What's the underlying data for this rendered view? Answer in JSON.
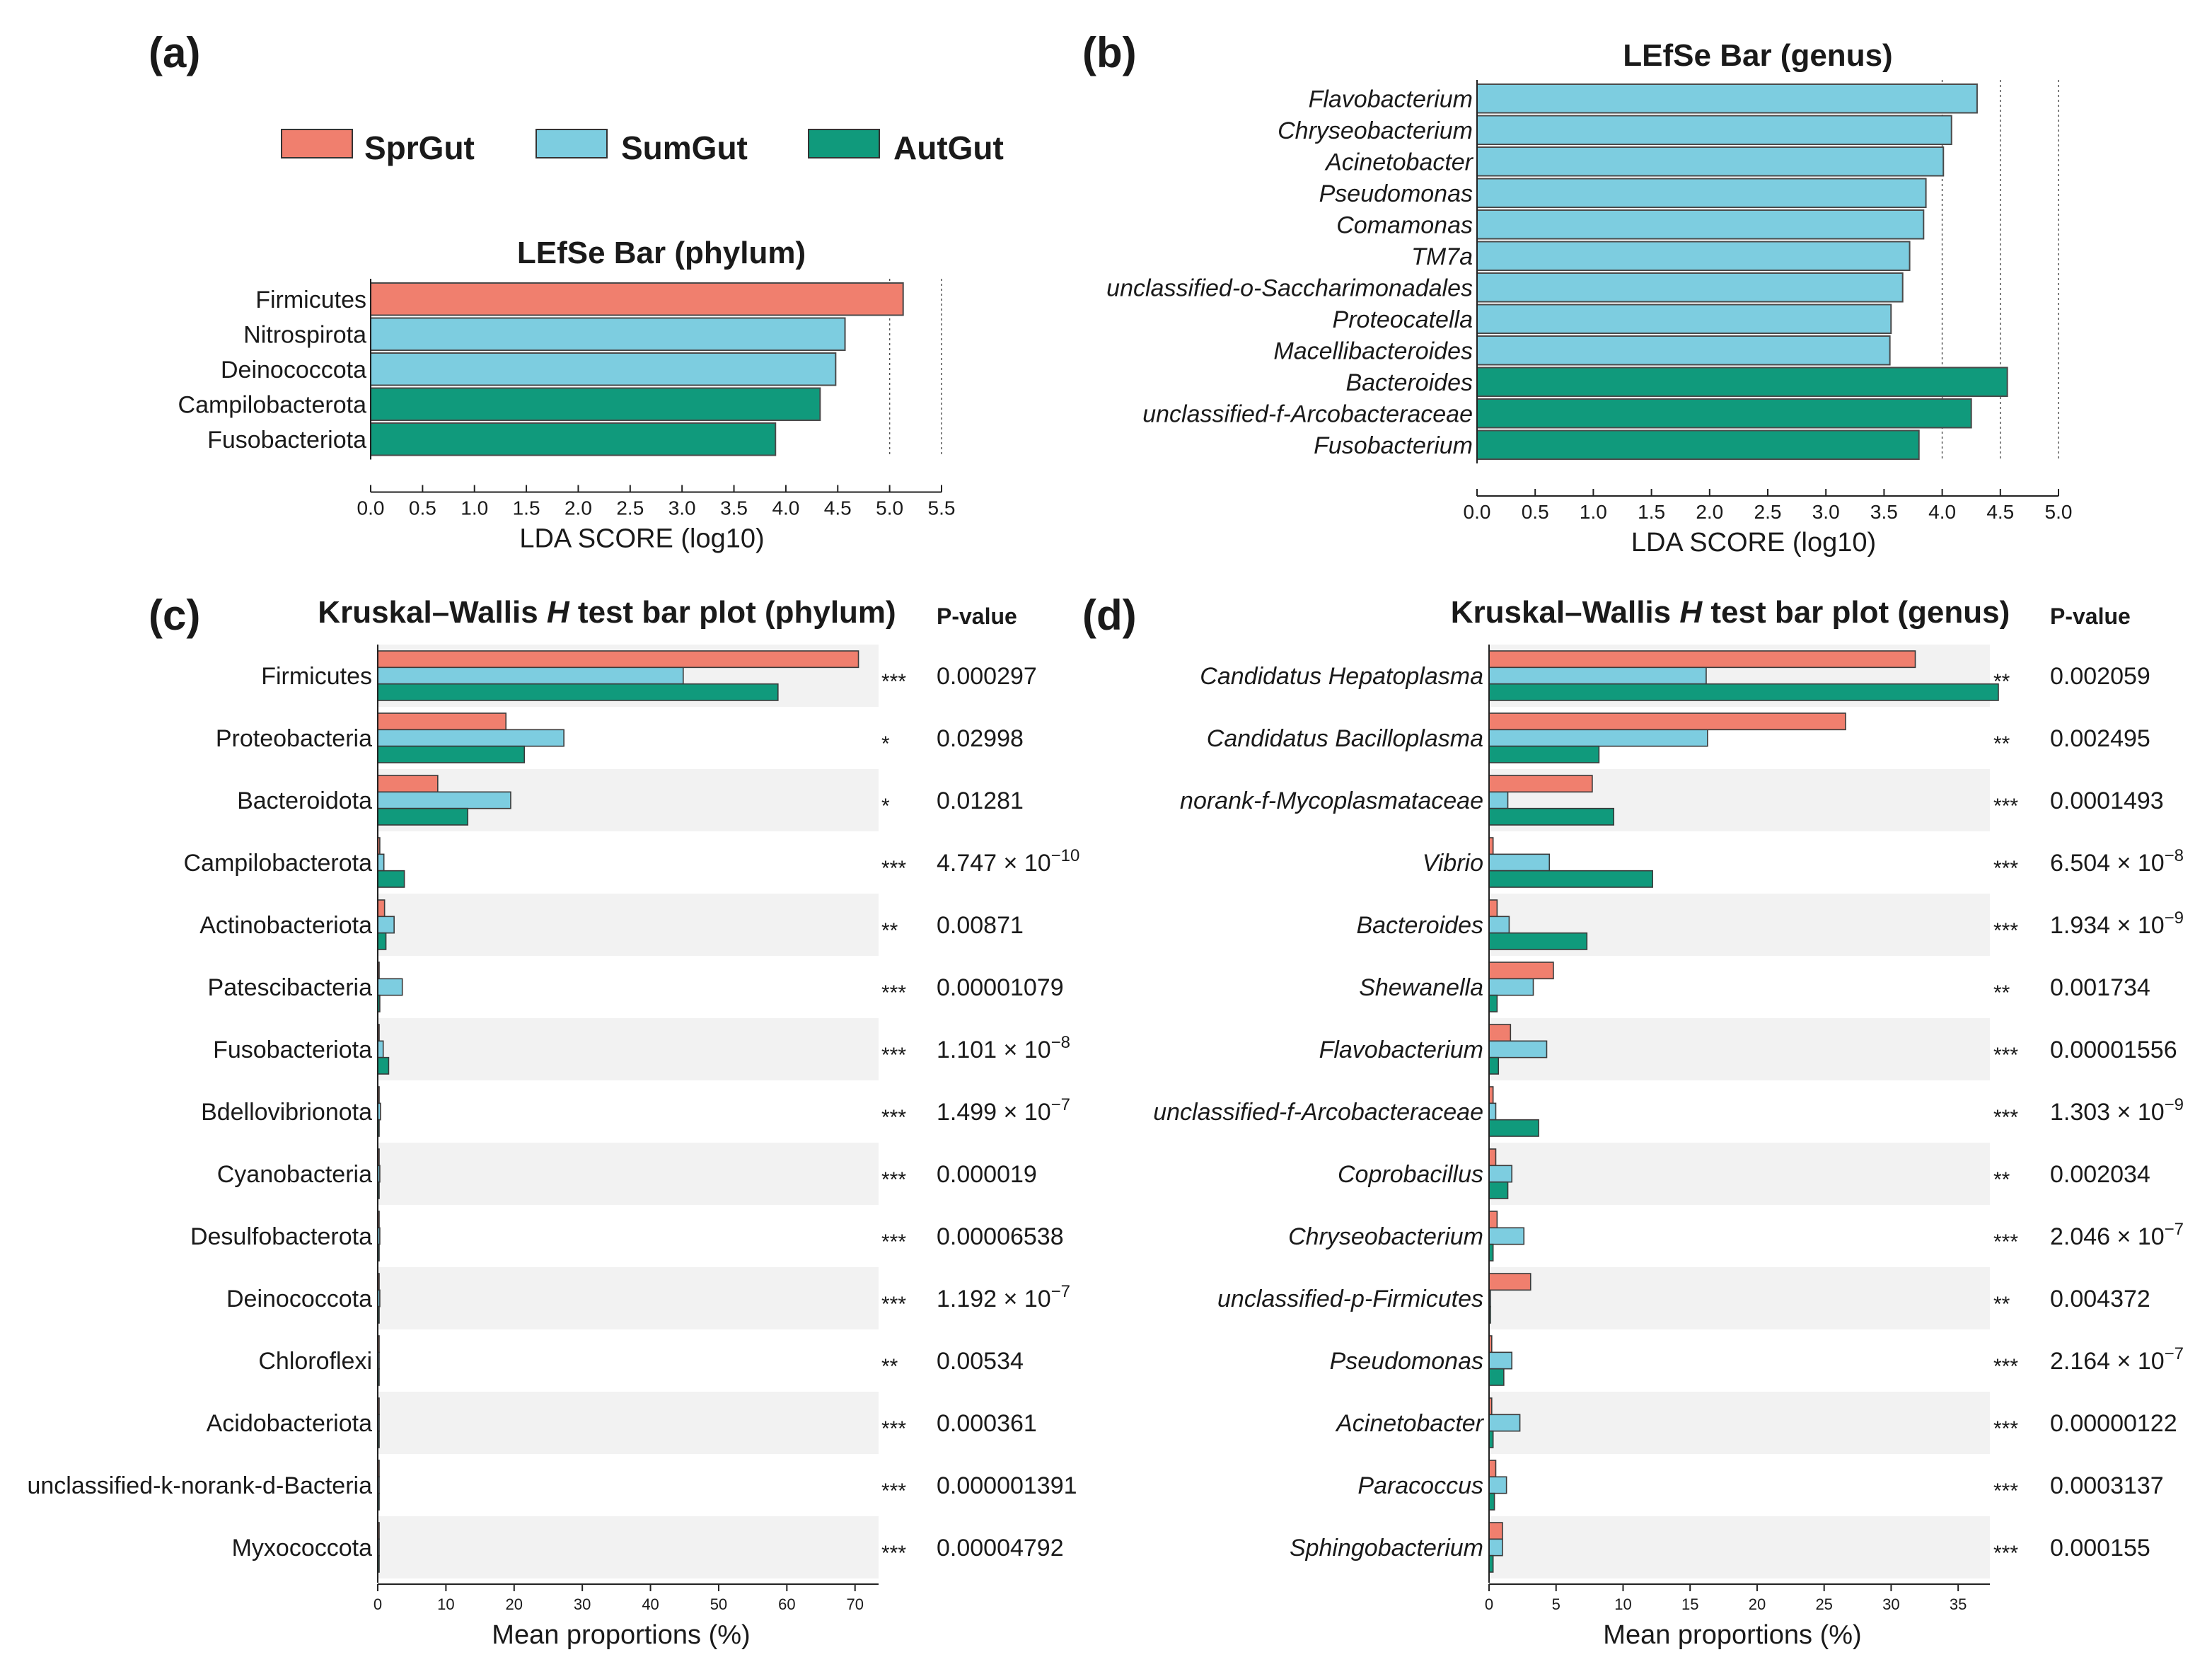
{
  "colors": {
    "SprGut": "#F07F6E",
    "SumGut": "#7DCDE0",
    "AutGut": "#109A7C",
    "stripe": "#F2F2F2"
  },
  "legend": {
    "items": [
      "SprGut",
      "SumGut",
      "AutGut"
    ]
  },
  "panels": {
    "a": {
      "label": "(a)"
    },
    "b": {
      "label": "(b)"
    },
    "c": {
      "label": "(c)",
      "pvalue_header": "P-value"
    },
    "d": {
      "label": "(d)",
      "pvalue_header": "P-value"
    }
  },
  "chart_data": [
    {
      "id": "a",
      "type": "bar",
      "orientation": "horizontal",
      "title": "LEfSe Bar (phylum)",
      "xlabel": "LDA SCORE (log10)",
      "xlim": [
        0,
        5.5
      ],
      "xticks": [
        "0.0",
        "0.5",
        "1.0",
        "1.5",
        "2.0",
        "2.5",
        "3.0",
        "3.5",
        "4.0",
        "4.5",
        "5.0",
        "5.5"
      ],
      "categories": [
        "Firmicutes",
        "Nitrospirota",
        "Deinococcota",
        "Campilobacterota",
        "Fusobacteriota"
      ],
      "values": [
        5.13,
        4.57,
        4.48,
        4.33,
        3.9
      ],
      "groups": [
        "SprGut",
        "SumGut",
        "SumGut",
        "AutGut",
        "AutGut"
      ],
      "italic": false
    },
    {
      "id": "b",
      "type": "bar",
      "orientation": "horizontal",
      "title": "LEfSe Bar (genus)",
      "xlabel": "LDA SCORE (log10)",
      "xlim": [
        0,
        5.0
      ],
      "xticks": [
        "0.0",
        "0.5",
        "1.0",
        "1.5",
        "2.0",
        "2.5",
        "3.0",
        "3.5",
        "4.0",
        "4.5",
        "5.0"
      ],
      "categories": [
        "Flavobacterium",
        "Chryseobacterium",
        "Acinetobacter",
        "Pseudomonas",
        "Comamonas",
        "TM7a",
        "unclassified-o-Saccharimonadales",
        "Proteocatella",
        "Macellibacteroides",
        "Bacteroides",
        "unclassified-f-Arcobacteraceae",
        "Fusobacterium"
      ],
      "values": [
        4.3,
        4.08,
        4.01,
        3.86,
        3.84,
        3.72,
        3.66,
        3.56,
        3.55,
        4.56,
        4.25,
        3.8
      ],
      "groups": [
        "SumGut",
        "SumGut",
        "SumGut",
        "SumGut",
        "SumGut",
        "SumGut",
        "SumGut",
        "SumGut",
        "SumGut",
        "AutGut",
        "AutGut",
        "AutGut"
      ],
      "italic": true
    },
    {
      "id": "c",
      "type": "bar",
      "orientation": "horizontal",
      "title_pre": "Kruskal–Wallis ",
      "title_h": "H",
      "title_post": " test bar plot (phylum)",
      "xlabel": "Mean proportions (%)",
      "xlim": [
        0,
        72
      ],
      "xticks": [
        0,
        10,
        20,
        30,
        40,
        50,
        60,
        70
      ],
      "categories": [
        "Firmicutes",
        "Proteobacteria",
        "Bacteroidota",
        "Campilobacterota",
        "Actinobacteriota",
        "Patescibacteria",
        "Fusobacteriota",
        "Bdellovibrionota",
        "Cyanobacteria",
        "Desulfobacterota",
        "Deinococcota",
        "Chloroflexi",
        "Acidobacteriota",
        "unclassified-k-norank-d-Bacteria",
        "Myxococcota"
      ],
      "series": [
        {
          "name": "SprGut",
          "values": [
            70.5,
            18.8,
            8.8,
            0.3,
            1.0,
            0.2,
            0.2,
            0.1,
            0.1,
            0.1,
            0.1,
            0.1,
            0.1,
            0.1,
            0.1
          ]
        },
        {
          "name": "SumGut",
          "values": [
            44.8,
            27.3,
            19.5,
            0.9,
            2.4,
            3.6,
            0.8,
            0.4,
            0.3,
            0.3,
            0.3,
            0.2,
            0.2,
            0.2,
            0.2
          ]
        },
        {
          "name": "AutGut",
          "values": [
            58.7,
            21.5,
            13.2,
            3.9,
            1.2,
            0.3,
            1.6,
            0.1,
            0.1,
            0.1,
            0.1,
            0.1,
            0.1,
            0.1,
            0.1
          ]
        }
      ],
      "stars": [
        "***",
        "*",
        "*",
        "***",
        "**",
        "***",
        "***",
        "***",
        "***",
        "***",
        "***",
        "**",
        "***",
        "***",
        "***"
      ],
      "pvalues": [
        {
          "m": "0.000297"
        },
        {
          "m": "0.02998"
        },
        {
          "m": "0.01281"
        },
        {
          "m": "4.747 × 10",
          "e": "−10"
        },
        {
          "m": "0.00871"
        },
        {
          "m": "0.00001079"
        },
        {
          "m": "1.101 × 10",
          "e": "−8"
        },
        {
          "m": "1.499 × 10",
          "e": "−7"
        },
        {
          "m": "0.000019"
        },
        {
          "m": "0.00006538"
        },
        {
          "m": "1.192 × 10",
          "e": "−7"
        },
        {
          "m": "0.00534"
        },
        {
          "m": "0.000361"
        },
        {
          "m": "0.000001391"
        },
        {
          "m": "0.00004792"
        }
      ],
      "italic": false
    },
    {
      "id": "d",
      "type": "bar",
      "orientation": "horizontal",
      "title_pre": "Kruskal–Wallis ",
      "title_h": "H",
      "title_post": " test bar plot (genus)",
      "xlabel": "Mean proportions (%)",
      "xlim": [
        0,
        38
      ],
      "xticks": [
        0,
        5,
        10,
        15,
        20,
        25,
        30,
        35
      ],
      "categories": [
        "Candidatus Hepatoplasma",
        "Candidatus Bacilloplasma",
        "norank-f-Mycoplasmataceae",
        "Vibrio",
        "Bacteroides",
        "Shewanella",
        "Flavobacterium",
        "unclassified-f-Arcobacteraceae",
        "Coprobacillus",
        "Chryseobacterium",
        "unclassified-p-Firmicutes",
        "Pseudomonas",
        "Acinetobacter",
        "Paracoccus",
        "Sphingobacterium"
      ],
      "series": [
        {
          "name": "SprGut",
          "values": [
            31.8,
            26.6,
            7.7,
            0.3,
            0.6,
            4.8,
            1.6,
            0.3,
            0.5,
            0.6,
            3.1,
            0.2,
            0.2,
            0.5,
            1.0
          ]
        },
        {
          "name": "SumGut",
          "values": [
            16.2,
            16.3,
            1.4,
            4.5,
            1.5,
            3.3,
            4.3,
            0.5,
            1.7,
            2.6,
            0.1,
            1.7,
            2.3,
            1.3,
            1.0
          ]
        },
        {
          "name": "AutGut",
          "values": [
            38.0,
            8.2,
            9.3,
            12.2,
            7.3,
            0.6,
            0.7,
            3.7,
            1.4,
            0.3,
            0.1,
            1.1,
            0.3,
            0.4,
            0.3
          ]
        }
      ],
      "stars": [
        "**",
        "**",
        "***",
        "***",
        "***",
        "**",
        "***",
        "***",
        "**",
        "***",
        "**",
        "***",
        "***",
        "***",
        "***"
      ],
      "pvalues": [
        {
          "m": "0.002059"
        },
        {
          "m": "0.002495"
        },
        {
          "m": "0.0001493"
        },
        {
          "m": "6.504 × 10",
          "e": "−8"
        },
        {
          "m": "1.934 × 10",
          "e": "−9"
        },
        {
          "m": "0.001734"
        },
        {
          "m": "0.00001556"
        },
        {
          "m": "1.303 × 10",
          "e": "−9"
        },
        {
          "m": "0.002034"
        },
        {
          "m": "2.046 × 10",
          "e": "−7"
        },
        {
          "m": "0.004372"
        },
        {
          "m": "2.164 × 10",
          "e": "−7"
        },
        {
          "m": "0.00000122"
        },
        {
          "m": "0.0003137"
        },
        {
          "m": "0.000155"
        }
      ],
      "italic": true
    }
  ]
}
